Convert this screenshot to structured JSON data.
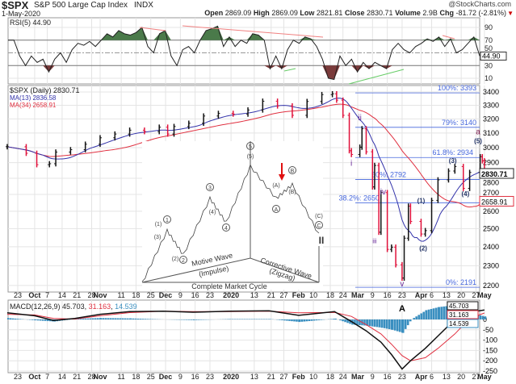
{
  "header": {
    "symbol": "$SPX",
    "name": "S&P 500 Large Cap Index",
    "exchange": "INDX",
    "date": "1-May-2020",
    "brand": "@StockCharts.com",
    "open_label": "Open",
    "open": "2869.09",
    "high_label": "High",
    "high": "2869.09",
    "low_label": "Low",
    "low": "2821.81",
    "close_label": "Close",
    "close": "2830.71",
    "volume_label": "Volume",
    "volume": "2.9B",
    "chg_label": "Chg",
    "chg": "-81.72 (-2.81%)",
    "chg_icon": "down-triangle-icon"
  },
  "chart_data": [
    {
      "type": "line",
      "panel": "rsi",
      "legend": "RSI(5) 44.90",
      "last_label": "44.90",
      "ylim": [
        0,
        100
      ],
      "yticks": [
        10,
        30,
        50,
        70,
        90
      ],
      "overbought": 70,
      "oversold": 30,
      "values": [
        70,
        70,
        45,
        30,
        45,
        35,
        40,
        20,
        40,
        50,
        35,
        55,
        65,
        62,
        68,
        60,
        70,
        80,
        75,
        85,
        80,
        78,
        82,
        90,
        60,
        50,
        80,
        85,
        45,
        30,
        55,
        60,
        50,
        70,
        85,
        88,
        92,
        60,
        75,
        60,
        70,
        65,
        80,
        78,
        70,
        25,
        45,
        25,
        55,
        70,
        65,
        75,
        72,
        60,
        40,
        10,
        8,
        45,
        30,
        40,
        20,
        35,
        25,
        35,
        30,
        25,
        55,
        65,
        55,
        50,
        60,
        65,
        72,
        68,
        75,
        60,
        72,
        50,
        55,
        65,
        75,
        45
      ]
    },
    {
      "type": "line",
      "panel": "price",
      "scale": "log",
      "legend": "$SPX (Daily) 2830.71",
      "ylim": [
        2180,
        3480
      ],
      "yticks": [
        2200,
        2300,
        2400,
        2500,
        2600,
        2700,
        2800,
        2900,
        3000,
        3100,
        3200,
        3300,
        3400
      ],
      "last_label": "2830.71",
      "dates": [
        "2019-09-18",
        "2019-09-27",
        "2019-10-02",
        "2019-10-08",
        "2019-10-11",
        "2019-10-18",
        "2019-10-25",
        "2019-11-01",
        "2019-11-08",
        "2019-11-15",
        "2019-11-22",
        "2019-11-29",
        "2019-12-03",
        "2019-12-06",
        "2019-12-13",
        "2019-12-20",
        "2019-12-27",
        "2020-01-03",
        "2020-01-10",
        "2020-01-17",
        "2020-01-24",
        "2020-01-31",
        "2020-02-07",
        "2020-02-14",
        "2020-02-19",
        "2020-02-21",
        "2020-02-24",
        "2020-02-27",
        "2020-02-28",
        "2020-03-03",
        "2020-03-04",
        "2020-03-06",
        "2020-03-09",
        "2020-03-10",
        "2020-03-12",
        "2020-03-13",
        "2020-03-16",
        "2020-03-18",
        "2020-03-20",
        "2020-03-23",
        "2020-03-24",
        "2020-03-26",
        "2020-03-27",
        "2020-04-01",
        "2020-04-03",
        "2020-04-06",
        "2020-04-09",
        "2020-04-14",
        "2020-04-17",
        "2020-04-21",
        "2020-04-24",
        "2020-04-29",
        "2020-04-30",
        "2020-05-01"
      ],
      "close": [
        3006,
        2962,
        2887,
        2893,
        2970,
        2986,
        3023,
        3067,
        3093,
        3120,
        3110,
        3141,
        3093,
        3146,
        3169,
        3221,
        3240,
        3235,
        3265,
        3330,
        3295,
        3226,
        3328,
        3380,
        3386,
        3338,
        3226,
        2979,
        2954,
        3003,
        3130,
        2972,
        2746,
        2882,
        2480,
        2711,
        2386,
        2398,
        2305,
        2237,
        2447,
        2630,
        2541,
        2470,
        2489,
        2664,
        2790,
        2846,
        2875,
        2737,
        2837,
        2939,
        2912,
        2831
      ],
      "ma": [
        {
          "name": "MA(13)",
          "legend": "MA(13) 2836.58",
          "last": "2836.58",
          "color": "#3333aa"
        },
        {
          "name": "MA(34)",
          "legend": "MA(34) 2658.91",
          "last": "2658.91",
          "color": "#e03040"
        }
      ],
      "fib": [
        {
          "label": "100%: 3393",
          "value": 3393
        },
        {
          "label": "79%: 3140",
          "value": 3140
        },
        {
          "label": "61.8%: 2934",
          "value": 2934
        },
        {
          "label": "50%: 2792",
          "value": 2792
        },
        {
          "label": "38.2%: 2650",
          "value": 2650
        },
        {
          "label": "0%: 2191",
          "value": 2191
        }
      ],
      "wave_labels": [
        {
          "t": "i",
          "d": "2020-02-28",
          "v": 2880
        },
        {
          "t": "ii",
          "d": "2020-03-03",
          "v": 3190
        },
        {
          "t": "iii",
          "d": "2020-03-10",
          "v": 2420
        },
        {
          "t": "iv",
          "d": "2020-03-14",
          "v": 2700
        },
        {
          "t": "v",
          "d": "2020-03-23",
          "v": 2170
        },
        {
          "t": "(1)",
          "d": "2020-04-01",
          "v": 2650
        },
        {
          "t": "(2)",
          "d": "2020-04-02",
          "v": 2380
        },
        {
          "t": "(3)",
          "d": "2020-04-16",
          "v": 2910
        },
        {
          "t": "(4)",
          "d": "2020-04-22",
          "v": 2690
        },
        {
          "t": "(5)",
          "d": "2020-04-28",
          "v": 3030
        },
        {
          "t": "a",
          "d": "2020-04-28",
          "v": 3090
        }
      ]
    },
    {
      "type": "line",
      "panel": "macd",
      "legend_name": "MACD(12,26,9)",
      "legend_macd": "45.703",
      "legend_signal": "31.163",
      "legend_hist": "14.539",
      "annotation": "A",
      "ylim": [
        -260,
        50
      ],
      "yticks": [
        0,
        -50,
        -100,
        -150,
        -200,
        -250
      ],
      "dates": [
        "2019-09-18",
        "2019-10-01",
        "2019-10-10",
        "2019-10-20",
        "2019-11-01",
        "2019-11-15",
        "2019-12-01",
        "2019-12-15",
        "2020-01-01",
        "2020-01-20",
        "2020-02-03",
        "2020-02-20",
        "2020-02-28",
        "2020-03-06",
        "2020-03-13",
        "2020-03-18",
        "2020-03-23",
        "2020-03-27",
        "2020-04-03",
        "2020-04-09",
        "2020-04-17",
        "2020-04-24",
        "2020-05-01"
      ],
      "macd": [
        32,
        18,
        -5,
        5,
        25,
        38,
        40,
        35,
        40,
        42,
        20,
        38,
        -10,
        -55,
        -110,
        -170,
        -240,
        -200,
        -140,
        -80,
        0,
        35,
        45.7
      ],
      "signal": [
        25,
        22,
        5,
        2,
        18,
        33,
        40,
        38,
        38,
        40,
        32,
        34,
        15,
        -25,
        -70,
        -120,
        -175,
        -200,
        -185,
        -140,
        -70,
        5,
        31.2
      ]
    },
    {
      "type": "diagram",
      "panel": "inset",
      "labels": {
        "motive": "Motive Wave",
        "impulse": "(Impulse)",
        "corrective": "Corrective Wave",
        "zigzag": "(Zigzag)",
        "cycle": "Complete Market Cycle",
        "I": "I",
        "II": "II"
      },
      "wave_labels": [
        "(1)",
        "(2)",
        "(3)",
        "(4)",
        "(5)",
        "(A)",
        "(B)",
        "(C)",
        "1",
        "2",
        "3",
        "4",
        "5",
        "A",
        "B",
        "C"
      ]
    }
  ],
  "xaxis": [
    {
      "t": "23",
      "d": "2019-09-23"
    },
    {
      "t": "Oct",
      "d": "2019-10-01",
      "b": 1
    },
    {
      "t": "7",
      "d": "2019-10-07"
    },
    {
      "t": "14",
      "d": "2019-10-14"
    },
    {
      "t": "21",
      "d": "2019-10-21"
    },
    {
      "t": "28",
      "d": "2019-10-28"
    },
    {
      "t": "Nov",
      "d": "2019-11-01",
      "b": 1
    },
    {
      "t": "11",
      "d": "2019-11-11"
    },
    {
      "t": "18",
      "d": "2019-11-18"
    },
    {
      "t": "25",
      "d": "2019-11-25"
    },
    {
      "t": "Dec",
      "d": "2019-12-02",
      "b": 1
    },
    {
      "t": "9",
      "d": "2019-12-09"
    },
    {
      "t": "16",
      "d": "2019-12-16"
    },
    {
      "t": "23",
      "d": "2019-12-23"
    },
    {
      "t": "2020",
      "d": "2020-01-02",
      "b": 1
    },
    {
      "t": "13",
      "d": "2020-01-13"
    },
    {
      "t": "21",
      "d": "2020-01-21"
    },
    {
      "t": "27",
      "d": "2020-01-27"
    },
    {
      "t": "Feb",
      "d": "2020-02-03",
      "b": 1
    },
    {
      "t": "10",
      "d": "2020-02-10"
    },
    {
      "t": "18",
      "d": "2020-02-18"
    },
    {
      "t": "24",
      "d": "2020-02-24"
    },
    {
      "t": "Mar",
      "d": "2020-03-02",
      "b": 1
    },
    {
      "t": "9",
      "d": "2020-03-09"
    },
    {
      "t": "16",
      "d": "2020-03-16"
    },
    {
      "t": "23",
      "d": "2020-03-23"
    },
    {
      "t": "Apr",
      "d": "2020-04-01",
      "b": 1
    },
    {
      "t": "6",
      "d": "2020-04-06"
    },
    {
      "t": "13",
      "d": "2020-04-13"
    },
    {
      "t": "20",
      "d": "2020-04-20"
    },
    {
      "t": "27",
      "d": "2020-04-27"
    },
    {
      "t": "May",
      "d": "2020-05-01",
      "b": 1
    }
  ],
  "colors": {
    "up": "#111111",
    "down": "#e0103a",
    "fib": "#4466dd",
    "rsi_fill_high": "#4a7a4a",
    "rsi_fill_low": "#7a3a3a",
    "hist": "#3a8fc0",
    "wave": "#6a2a9a"
  }
}
